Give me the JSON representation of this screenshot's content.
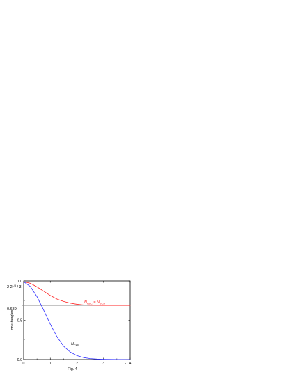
{
  "chart_data": {
    "type": "line",
    "xlabel": "r",
    "ylabel": "one-tangles",
    "xlim": [
      0,
      4
    ],
    "ylim": [
      0,
      1
    ],
    "grid": false,
    "xticks": [
      "0",
      "1",
      "2",
      "3",
      "4"
    ],
    "yticks": [
      {
        "value": 0.0,
        "label": "0.0"
      },
      {
        "value": 0.5,
        "label": "0.5"
      },
      {
        "value": 1.0,
        "label": "1.0"
      }
    ],
    "extra_ylabels": [
      {
        "value": 1.0,
        "base": "2 2",
        "sup": "1/3",
        "tail": " / 3"
      },
      {
        "value": 0.689,
        "base": "0.689",
        "sup": "",
        "tail": ""
      }
    ],
    "hline": {
      "y": 0.689,
      "color": "#888888"
    },
    "series": [
      {
        "name_main": "N",
        "name_sub": "ABC",
        "name_eq": " = N",
        "name_sub2": "BCA",
        "color": "#ff2020",
        "x": [
          0,
          0.25,
          0.5,
          0.75,
          1.0,
          1.25,
          1.5,
          1.75,
          2.0,
          2.25,
          2.5,
          2.75,
          3.0,
          3.5,
          4.0
        ],
        "y": [
          0.99,
          0.97,
          0.925,
          0.87,
          0.815,
          0.77,
          0.74,
          0.718,
          0.704,
          0.696,
          0.692,
          0.69,
          0.689,
          0.689,
          0.689
        ]
      },
      {
        "name_main": "N",
        "name_sub": "CAB",
        "name_eq": "",
        "name_sub2": "",
        "color": "#3030ff",
        "x": [
          0,
          0.25,
          0.5,
          0.75,
          1.0,
          1.25,
          1.5,
          1.75,
          2.0,
          2.25,
          2.5,
          2.75,
          3.0,
          3.25,
          3.5,
          4.0
        ],
        "y": [
          0.99,
          0.93,
          0.8,
          0.63,
          0.45,
          0.29,
          0.17,
          0.095,
          0.05,
          0.025,
          0.012,
          0.006,
          0.003,
          0.0015,
          0.0008,
          0.0002
        ]
      }
    ],
    "caption": "Fig. 4"
  }
}
